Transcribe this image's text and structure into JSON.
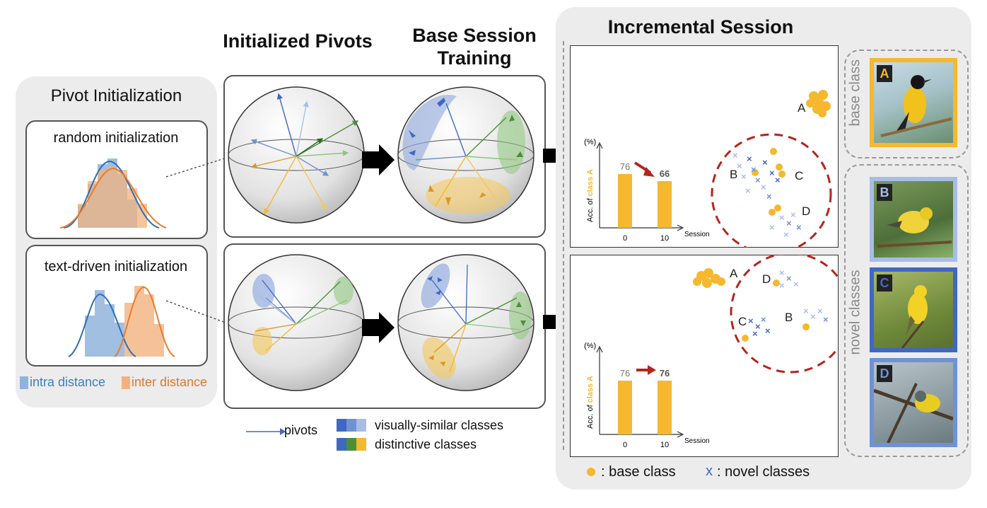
{
  "titles": {
    "initialized_pivots": "Initialized Pivots",
    "base_session_line1": "Base Session",
    "base_session_line2": "Training",
    "incremental_session": "Incremental Session",
    "pivot_initialization": "Pivot Initialization"
  },
  "left_panel": {
    "random_label": "random initialization",
    "text_label": "text-driven initialization",
    "legend_intra": "intra distance",
    "legend_inter": "inter distance"
  },
  "legend": {
    "pivots": "pivots",
    "visually_similar": "visually-similar classes",
    "distinctive": "distinctive classes"
  },
  "incremental": {
    "top_plot": {
      "ylabel_prefix": "Acc. of ",
      "ylabel_class": "class A",
      "yunit": "(%)",
      "xlabel": "Session",
      "categories": [
        "0",
        "10"
      ],
      "values": [
        76,
        66
      ],
      "value_labels": [
        "76",
        "66"
      ],
      "cluster_letters": [
        "A",
        "B",
        "C",
        "D"
      ]
    },
    "bottom_plot": {
      "ylabel_prefix": "Acc. of ",
      "ylabel_class": "class A",
      "yunit": "(%)",
      "xlabel": "Session",
      "categories": [
        "0",
        "10"
      ],
      "values": [
        76,
        76
      ],
      "value_labels": [
        "76",
        "76"
      ],
      "cluster_letters": [
        "A",
        "D",
        "C",
        "B"
      ]
    },
    "legend_dot": ": base class",
    "legend_x_symbol": "x",
    "legend_x": ": novel classes"
  },
  "side": {
    "base_class_label": "base class",
    "novel_classes_label": "novel classes",
    "photo_letters": [
      "A",
      "B",
      "C",
      "D"
    ]
  },
  "colors": {
    "orange": "#f5b82e",
    "blue_dark": "#3f68c2",
    "blue_mid": "#6f92d6",
    "blue_light": "#a8bde6",
    "green": "#4c8f3b",
    "red_arrow": "#b3261e",
    "hist_blue": "#8fb4dc",
    "hist_orange": "#f2b27e",
    "curve_blue": "#2e6fb3",
    "curve_orange": "#e87d2c"
  }
}
